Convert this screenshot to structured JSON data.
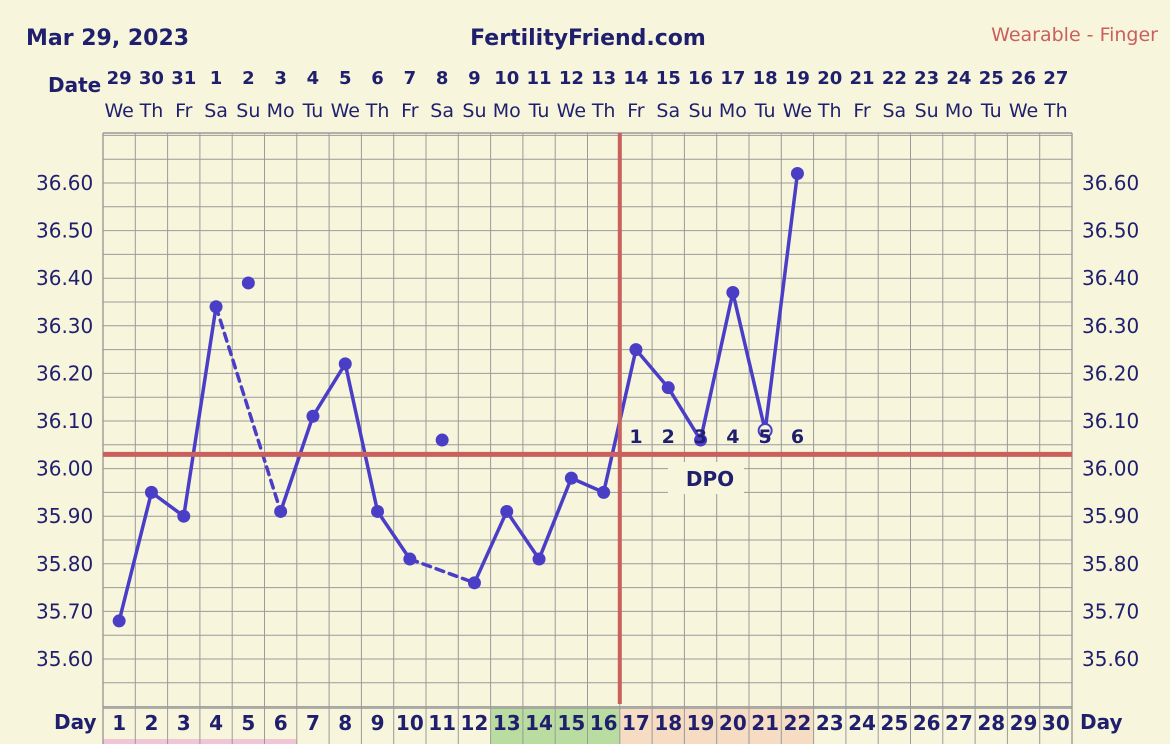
{
  "header": {
    "date": "Mar 29, 2023",
    "site": "FertilityFriend.com",
    "source": "Wearable - Finger"
  },
  "labels": {
    "date_label": "Date",
    "day_label": "Day",
    "dpo_label": "DPO"
  },
  "colors": {
    "background": "#f7f5dc",
    "grid": "#9a9a9a",
    "series": "#4b3ec6",
    "text": "#1f1f6e",
    "coverline": "#c9605e",
    "fertile_green": "#b9dca0",
    "luteal_peach": "#f6dcc2",
    "source_text": "#c9605e"
  },
  "chart_data": {
    "type": "line",
    "title": "",
    "xlabel": "Day",
    "ylabel": "",
    "ylim": [
      35.5,
      36.75
    ],
    "y_ticks": [
      "36.60",
      "36.50",
      "36.40",
      "36.30",
      "36.20",
      "36.10",
      "36.00",
      "35.90",
      "35.80",
      "35.70",
      "35.60"
    ],
    "cycle_days": [
      1,
      2,
      3,
      4,
      5,
      6,
      7,
      8,
      9,
      10,
      11,
      12,
      13,
      14,
      15,
      16,
      17,
      18,
      19,
      20,
      21,
      22,
      23,
      24,
      25,
      26,
      27,
      28,
      29,
      30
    ],
    "dates": [
      "29",
      "30",
      "31",
      "1",
      "2",
      "3",
      "4",
      "5",
      "6",
      "7",
      "8",
      "9",
      "10",
      "11",
      "12",
      "13",
      "14",
      "15",
      "16",
      "17",
      "18",
      "19",
      "20",
      "21",
      "22",
      "23",
      "24",
      "25",
      "26",
      "27"
    ],
    "weekdays": [
      "We",
      "Th",
      "Fr",
      "Sa",
      "Su",
      "Mo",
      "Tu",
      "We",
      "Th",
      "Fr",
      "Sa",
      "Su",
      "Mo",
      "Tu",
      "We",
      "Th",
      "Fr",
      "Sa",
      "Su",
      "Mo",
      "Tu",
      "We",
      "Th",
      "Fr",
      "Sa",
      "Su",
      "Mo",
      "Tu",
      "We",
      "Th"
    ],
    "temperatures": [
      35.68,
      35.95,
      35.9,
      36.34,
      36.39,
      35.91,
      36.11,
      36.22,
      35.91,
      35.81,
      36.06,
      35.76,
      35.91,
      35.81,
      35.98,
      35.95,
      36.25,
      36.17,
      36.06,
      36.37,
      36.08,
      36.62,
      null,
      null,
      null,
      null,
      null,
      null,
      null,
      null
    ],
    "discarded_days": [
      5,
      11
    ],
    "open_point_days": [
      21
    ],
    "coverline": 36.03,
    "ovulation_day": 16,
    "dpo_labels": [
      "1",
      "2",
      "3",
      "4",
      "5",
      "6"
    ],
    "fertile_days": [
      13,
      14,
      15,
      16
    ],
    "luteal_days": [
      17,
      18,
      19,
      20,
      21,
      22
    ],
    "grid": true
  }
}
